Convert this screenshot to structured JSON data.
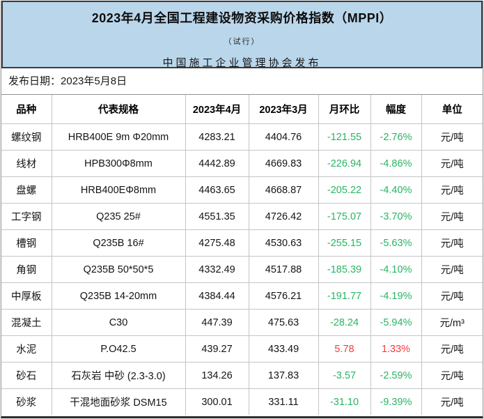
{
  "banner": {
    "title": "2023年4月全国工程建设物资采购价格指数（MPPI）",
    "subtitle": "（试行）",
    "publisher": "中国施工企业管理协会发布"
  },
  "release": {
    "label": "发布日期：",
    "date": "2023年5月8日"
  },
  "colors": {
    "banner_background": "#bad6eb",
    "decrease_green": "#28b464",
    "increase_red": "#fb3b3b"
  },
  "table": {
    "columns": [
      "品种",
      "代表规格",
      "2023年4月",
      "2023年3月",
      "月环比",
      "幅度",
      "单位"
    ],
    "rows": [
      {
        "name": "螺纹钢",
        "spec": "HRB400E 9m Φ20mm",
        "apr": "4283.21",
        "mar": "4404.76",
        "mom": "-121.55",
        "pct": "-2.76%",
        "unit": "元/吨"
      },
      {
        "name": "线材",
        "spec": "HPB300Φ8mm",
        "apr": "4442.89",
        "mar": "4669.83",
        "mom": "-226.94",
        "pct": "-4.86%",
        "unit": "元/吨"
      },
      {
        "name": "盘螺",
        "spec": "HRB400EΦ8mm",
        "apr": "4463.65",
        "mar": "4668.87",
        "mom": "-205.22",
        "pct": "-4.40%",
        "unit": "元/吨"
      },
      {
        "name": "工字钢",
        "spec": "Q235 25#",
        "apr": "4551.35",
        "mar": "4726.42",
        "mom": "-175.07",
        "pct": "-3.70%",
        "unit": "元/吨"
      },
      {
        "name": "槽钢",
        "spec": "Q235B 16#",
        "apr": "4275.48",
        "mar": "4530.63",
        "mom": "-255.15",
        "pct": "-5.63%",
        "unit": "元/吨"
      },
      {
        "name": "角钢",
        "spec": "Q235B 50*50*5",
        "apr": "4332.49",
        "mar": "4517.88",
        "mom": "-185.39",
        "pct": "-4.10%",
        "unit": "元/吨"
      },
      {
        "name": "中厚板",
        "spec": "Q235B 14-20mm",
        "apr": "4384.44",
        "mar": "4576.21",
        "mom": "-191.77",
        "pct": "-4.19%",
        "unit": "元/吨"
      },
      {
        "name": "混凝土",
        "spec": "C30",
        "apr": "447.39",
        "mar": "475.63",
        "mom": "-28.24",
        "pct": "-5.94%",
        "unit": "元/m³"
      },
      {
        "name": "水泥",
        "spec": "P.O42.5",
        "apr": "439.27",
        "mar": "433.49",
        "mom": "5.78",
        "pct": "1.33%",
        "unit": "元/吨"
      },
      {
        "name": "砂石",
        "spec": "石灰岩 中砂 (2.3-3.0)",
        "apr": "134.26",
        "mar": "137.83",
        "mom": "-3.57",
        "pct": "-2.59%",
        "unit": "元/吨"
      },
      {
        "name": "砂浆",
        "spec": "干混地面砂浆 DSM15",
        "apr": "300.01",
        "mar": "331.11",
        "mom": "-31.10",
        "pct": "-9.39%",
        "unit": "元/吨"
      }
    ]
  }
}
